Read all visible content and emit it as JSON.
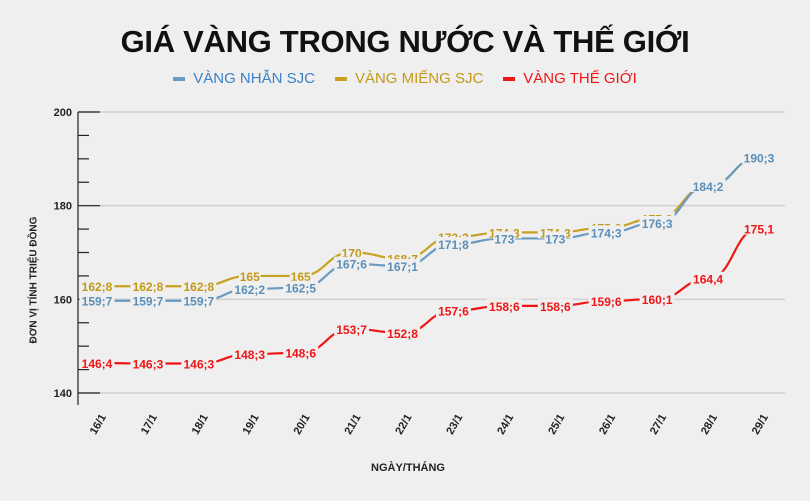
{
  "header": {
    "title": "GIÁ VÀNG TRONG NƯỚC VÀ THẾ GIỚI"
  },
  "legend": [
    {
      "label": "VÀNG NHẪN SJC",
      "color": "#6a9ac0",
      "text_color": "#3c82c4"
    },
    {
      "label": "VÀNG MIẾNG SJC",
      "color": "#c9a020",
      "text_color": "#c29a17"
    },
    {
      "label": "VÀNG THẾ GIỚI",
      "color": "#f01515",
      "text_color": "#f01515"
    }
  ],
  "axes": {
    "ylabel": "ĐƠN VỊ TÍNH TRIỆU ĐỒNG",
    "xlabel": "NGÀY/THÁNG",
    "yticks": [
      "200",
      "180",
      "160",
      "140"
    ]
  },
  "chart_data": {
    "type": "line",
    "title": "GIÁ VÀNG TRONG NƯỚC VÀ THẾ GIỚI",
    "xlabel": "NGÀY/THÁNG",
    "ylabel": "ĐƠN VỊ TÍNH TRIỆU ĐỒNG",
    "ylim": [
      140,
      200
    ],
    "yticks": [
      140,
      160,
      180,
      200
    ],
    "grid": true,
    "legend_position": "top",
    "categories": [
      "16/1",
      "17/1",
      "18/1",
      "19/1",
      "20/1",
      "21/1",
      "22/1",
      "23/1",
      "24/1",
      "25/1",
      "26/1",
      "27/1",
      "28/1",
      "29/1"
    ],
    "series": [
      {
        "name": "VÀNG NHẪN SJC",
        "color": "#6a9ac0",
        "values": [
          159.7,
          159.7,
          159.7,
          162.2,
          162.5,
          167.6,
          167.1,
          171.8,
          173,
          173,
          174.3,
          176.3,
          184.2,
          190.3
        ],
        "labels": [
          "159;7",
          "159;7",
          "159;7",
          "162;2",
          "162;5",
          "167;6",
          "167;1",
          "171;8",
          "173",
          "173",
          "174;3",
          "176;3",
          "184;2",
          "190;3"
        ]
      },
      {
        "name": "VÀNG MIẾNG SJC",
        "color": "#c9a020",
        "values": [
          162.8,
          162.8,
          162.8,
          165,
          165,
          170,
          168.7,
          173.3,
          174.3,
          174.3,
          175.3,
          177.3,
          184.2,
          190.3
        ],
        "labels": [
          "162;8",
          "162;8",
          "162;8",
          "165",
          "165",
          "170",
          "168;7",
          "173;3",
          "174;3",
          "174;3",
          "175;3",
          "177;3",
          "184,2",
          "190,3"
        ]
      },
      {
        "name": "VÀNG THẾ GIỚI",
        "color": "#f01515",
        "values": [
          146.4,
          146.3,
          146.3,
          148.3,
          148.6,
          153.7,
          152.8,
          157.6,
          158.6,
          158.6,
          159.6,
          160.1,
          164.4,
          175.1
        ],
        "labels": [
          "146;4",
          "146;3",
          "146;3",
          "148;3",
          "148;6",
          "153;7",
          "152;8",
          "157;6",
          "158;6",
          "158;6",
          "159;6",
          "160;1",
          "164,4",
          "175,1"
        ]
      }
    ]
  }
}
